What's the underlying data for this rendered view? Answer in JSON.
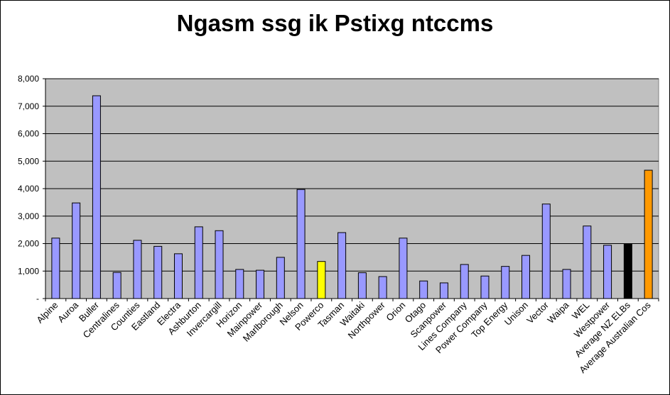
{
  "chart_data": {
    "type": "bar",
    "title": "Ngasm ssg ik Pstixg ntccms",
    "xlabel": "",
    "ylabel": "",
    "ylim": [
      0,
      8000
    ],
    "yticks": [
      0,
      1000,
      2000,
      3000,
      4000,
      5000,
      6000,
      7000,
      8000
    ],
    "ytick_labels": [
      "-",
      "1,000",
      "2,000",
      "3,000",
      "4,000",
      "5,000",
      "6,000",
      "7,000",
      "8,000"
    ],
    "grid": true,
    "legend": false,
    "categories": [
      "Alpine",
      "Auroa",
      "Buller",
      "Centralines",
      "Counties",
      "Eastland",
      "Electra",
      "Ashburton",
      "Invercargill",
      "Horizon",
      "Mainpower",
      "Marlborough",
      "Nelson",
      "Powerco",
      "Tasman",
      "Waitaki",
      "Northpower",
      "Orion",
      "Otago",
      "Scanpower",
      "Lines Company",
      "Power Company",
      "Top Energy",
      "Unison",
      "Vector",
      "Waipa",
      "WEL",
      "Westpower",
      "Average NZ ELBs",
      "Average Australian Cos"
    ],
    "values": [
      2200,
      3480,
      7380,
      950,
      2120,
      1900,
      1630,
      2610,
      2470,
      1060,
      1030,
      1500,
      3970,
      1350,
      2400,
      940,
      800,
      2200,
      640,
      570,
      1240,
      820,
      1170,
      1570,
      3440,
      1060,
      2640,
      1940,
      2000,
      4670
    ],
    "colors": {
      "default_bar": "#9999ff",
      "Powerco": "#ffff00",
      "Average NZ ELBs": "#000000",
      "Average Australian Cos": "#ff9900",
      "plot_background": "#c0c0c0",
      "gridline": "#000000"
    }
  }
}
